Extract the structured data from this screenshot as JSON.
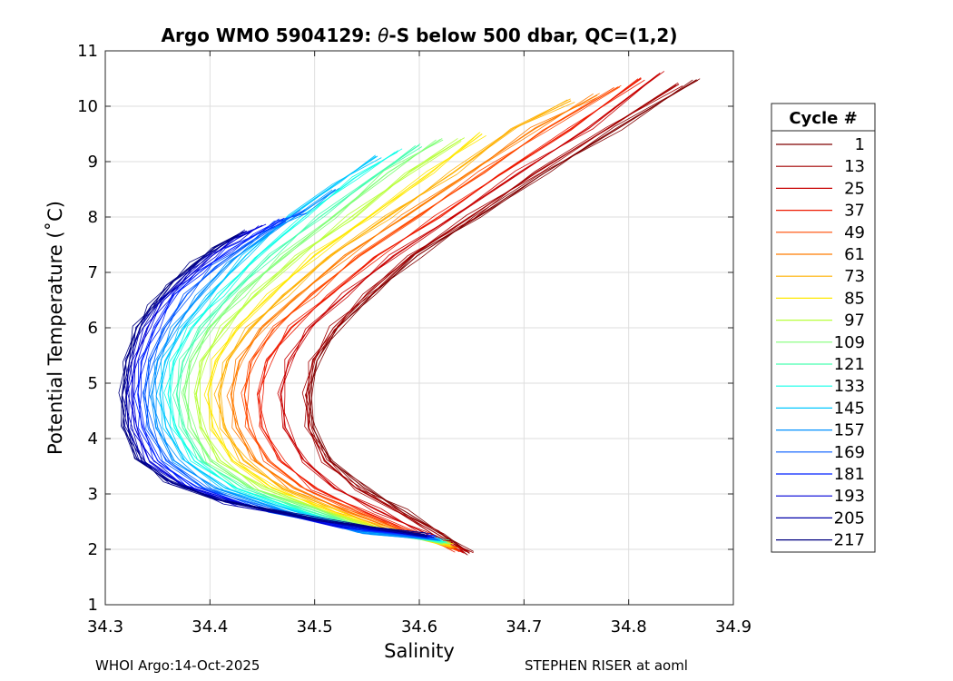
{
  "footer": {
    "left": "WHOI Argo:14-Oct-2025",
    "right": "STEPHEN RISER at aoml"
  },
  "chart_data": {
    "type": "line",
    "title_prefix": "Argo WMO 5904129: ",
    "title_symbol": "θ",
    "title_suffix": "-S below 500 dbar,  QC=(1,2)",
    "xlabel": "Salinity",
    "ylabel": "Potential Temperature (˚C)",
    "xlim": [
      34.3,
      34.9
    ],
    "ylim": [
      1,
      11
    ],
    "xticks": [
      "34.3",
      "34.4",
      "34.5",
      "34.6",
      "34.7",
      "34.8",
      "34.9"
    ],
    "yticks": [
      "1",
      "2",
      "3",
      "4",
      "5",
      "6",
      "7",
      "8",
      "9",
      "10",
      "11"
    ],
    "grid": true,
    "legend": {
      "title": "Cycle #",
      "placement": "outside-right",
      "entries": [
        {
          "label": "1",
          "color": "#800000"
        },
        {
          "label": "13",
          "color": "#a30000"
        },
        {
          "label": "25",
          "color": "#c80000"
        },
        {
          "label": "37",
          "color": "#ee1a00"
        },
        {
          "label": "49",
          "color": "#ff4a00"
        },
        {
          "label": "61",
          "color": "#ff7c00"
        },
        {
          "label": "73",
          "color": "#ffb000"
        },
        {
          "label": "85",
          "color": "#ffe800"
        },
        {
          "label": "97",
          "color": "#b8ff3c"
        },
        {
          "label": "109",
          "color": "#80ff78"
        },
        {
          "label": "121",
          "color": "#48ffb0"
        },
        {
          "label": "133",
          "color": "#10ffe8"
        },
        {
          "label": "145",
          "color": "#00c8ff"
        },
        {
          "label": "157",
          "color": "#0090ff"
        },
        {
          "label": "169",
          "color": "#0058ff"
        },
        {
          "label": "181",
          "color": "#0020ff"
        },
        {
          "label": "193",
          "color": "#0000d8"
        },
        {
          "label": "205",
          "color": "#0000a8"
        },
        {
          "label": "217",
          "color": "#000080"
        }
      ]
    },
    "series": [
      {
        "name": "1",
        "color": "#800000",
        "salinity": [
          34.648,
          34.62,
          34.585,
          34.548,
          34.515,
          34.498,
          34.495,
          34.502,
          34.522,
          34.555,
          34.598,
          34.655,
          34.72,
          34.79,
          34.865
        ],
        "theta": [
          1.93,
          2.3,
          2.7,
          3.1,
          3.6,
          4.2,
          4.8,
          5.4,
          6.0,
          6.6,
          7.3,
          8.0,
          8.8,
          9.6,
          10.48
        ]
      },
      {
        "name": "13",
        "color": "#a30000",
        "salinity": [
          34.648,
          34.615,
          34.578,
          34.54,
          34.51,
          34.494,
          34.492,
          34.498,
          34.518,
          34.55,
          34.592,
          34.648,
          34.712,
          34.78,
          34.848
        ],
        "theta": [
          1.93,
          2.3,
          2.7,
          3.1,
          3.6,
          4.2,
          4.8,
          5.4,
          6.0,
          6.6,
          7.3,
          8.0,
          8.8,
          9.6,
          10.4
        ]
      },
      {
        "name": "25",
        "color": "#c80000",
        "salinity": [
          34.642,
          34.605,
          34.56,
          34.52,
          34.49,
          34.472,
          34.468,
          34.475,
          34.495,
          34.53,
          34.575,
          34.632,
          34.695,
          34.762,
          34.83
        ],
        "theta": [
          1.95,
          2.3,
          2.7,
          3.1,
          3.6,
          4.2,
          4.8,
          5.4,
          6.0,
          6.6,
          7.3,
          8.0,
          8.8,
          9.6,
          10.6
        ]
      },
      {
        "name": "37",
        "color": "#ee1a00",
        "salinity": [
          34.638,
          34.595,
          34.545,
          34.5,
          34.468,
          34.45,
          34.447,
          34.455,
          34.478,
          34.515,
          34.56,
          34.618,
          34.68,
          34.745,
          34.812
        ],
        "theta": [
          1.98,
          2.3,
          2.7,
          3.1,
          3.6,
          4.2,
          4.8,
          5.4,
          6.0,
          6.6,
          7.3,
          8.0,
          8.8,
          9.6,
          10.5
        ]
      },
      {
        "name": "49",
        "color": "#ff4a00",
        "salinity": [
          34.635,
          34.59,
          34.538,
          34.49,
          34.455,
          34.437,
          34.433,
          34.44,
          34.462,
          34.498,
          34.542,
          34.598,
          34.66,
          34.722,
          34.79
        ],
        "theta": [
          2.0,
          2.3,
          2.7,
          3.1,
          3.6,
          4.2,
          4.8,
          5.4,
          6.0,
          6.6,
          7.3,
          8.0,
          8.8,
          9.6,
          10.35
        ]
      },
      {
        "name": "61",
        "color": "#ff7c00",
        "salinity": [
          34.633,
          34.585,
          34.53,
          34.48,
          34.443,
          34.425,
          34.42,
          34.428,
          34.45,
          34.485,
          34.53,
          34.585,
          34.648,
          34.71,
          34.77
        ],
        "theta": [
          2.02,
          2.3,
          2.7,
          3.1,
          3.6,
          4.2,
          4.8,
          5.4,
          6.0,
          6.6,
          7.3,
          8.0,
          8.8,
          9.6,
          10.2
        ]
      },
      {
        "name": "73",
        "color": "#ffb000",
        "salinity": [
          34.632,
          34.58,
          34.522,
          34.47,
          34.432,
          34.413,
          34.408,
          34.416,
          34.438,
          34.472,
          34.515,
          34.57,
          34.632,
          34.69,
          34.745
        ],
        "theta": [
          2.05,
          2.3,
          2.7,
          3.1,
          3.6,
          4.2,
          4.8,
          5.4,
          6.0,
          6.6,
          7.3,
          8.0,
          8.8,
          9.6,
          10.1
        ]
      },
      {
        "name": "85",
        "color": "#ffe800",
        "salinity": [
          34.63,
          34.575,
          34.515,
          34.46,
          34.422,
          34.403,
          34.398,
          34.405,
          34.426,
          34.458,
          34.5,
          34.552,
          34.61,
          34.66
        ],
        "theta": [
          2.07,
          2.3,
          2.7,
          3.1,
          3.6,
          4.2,
          4.8,
          5.4,
          6.0,
          6.6,
          7.3,
          8.0,
          8.8,
          9.5
        ]
      },
      {
        "name": "97",
        "color": "#b8ff3c",
        "salinity": [
          34.628,
          34.57,
          34.508,
          34.45,
          34.41,
          34.392,
          34.387,
          34.393,
          34.413,
          34.443,
          34.485,
          34.535,
          34.59,
          34.64
        ],
        "theta": [
          2.1,
          2.3,
          2.7,
          3.1,
          3.6,
          4.2,
          4.8,
          5.4,
          6.0,
          6.6,
          7.3,
          8.0,
          8.8,
          9.4
        ]
      },
      {
        "name": "109",
        "color": "#80ff78",
        "salinity": [
          34.627,
          34.565,
          34.5,
          34.44,
          34.4,
          34.382,
          34.376,
          34.382,
          34.4,
          34.43,
          34.47,
          34.518,
          34.57,
          34.62
        ],
        "theta": [
          2.12,
          2.3,
          2.7,
          3.1,
          3.6,
          4.2,
          4.8,
          5.4,
          6.0,
          6.6,
          7.3,
          8.0,
          8.8,
          9.4
        ]
      },
      {
        "name": "121",
        "color": "#48ffb0",
        "salinity": [
          34.625,
          34.56,
          34.492,
          34.432,
          34.392,
          34.374,
          34.368,
          34.374,
          34.392,
          34.42,
          34.458,
          34.505,
          34.555,
          34.6
        ],
        "theta": [
          2.14,
          2.3,
          2.7,
          3.1,
          3.6,
          4.2,
          4.8,
          5.4,
          6.0,
          6.6,
          7.3,
          8.0,
          8.7,
          9.3
        ]
      },
      {
        "name": "133",
        "color": "#10ffe8",
        "salinity": [
          34.622,
          34.555,
          34.485,
          34.425,
          34.385,
          34.366,
          34.36,
          34.365,
          34.382,
          34.41,
          34.446,
          34.49,
          34.538,
          34.58
        ],
        "theta": [
          2.16,
          2.3,
          2.7,
          3.1,
          3.6,
          4.2,
          4.8,
          5.4,
          6.0,
          6.6,
          7.3,
          8.0,
          8.7,
          9.2
        ]
      },
      {
        "name": "145",
        "color": "#00c8ff",
        "salinity": [
          34.62,
          34.55,
          34.478,
          34.415,
          34.376,
          34.358,
          34.352,
          34.357,
          34.374,
          34.4,
          34.434,
          34.475,
          34.52,
          34.56
        ],
        "theta": [
          2.17,
          2.3,
          2.7,
          3.1,
          3.6,
          4.2,
          4.8,
          5.4,
          6.0,
          6.6,
          7.3,
          8.0,
          8.6,
          9.1
        ]
      },
      {
        "name": "157",
        "color": "#0090ff",
        "salinity": [
          34.618,
          34.545,
          34.47,
          34.405,
          34.366,
          34.35,
          34.345,
          34.35,
          34.366,
          34.39,
          34.42,
          34.455,
          34.49,
          34.52
        ],
        "theta": [
          2.18,
          2.3,
          2.7,
          3.1,
          3.6,
          4.2,
          4.8,
          5.4,
          6.0,
          6.6,
          7.2,
          7.7,
          8.1,
          8.5
        ]
      },
      {
        "name": "169",
        "color": "#0058ff",
        "salinity": [
          34.615,
          34.54,
          34.46,
          34.395,
          34.358,
          34.342,
          34.338,
          34.343,
          34.357,
          34.378,
          34.405,
          34.435,
          34.465,
          34.49
        ],
        "theta": [
          2.2,
          2.35,
          2.7,
          3.1,
          3.6,
          4.2,
          4.8,
          5.4,
          6.0,
          6.6,
          7.1,
          7.5,
          7.9,
          8.1
        ]
      },
      {
        "name": "181",
        "color": "#0020ff",
        "salinity": [
          34.612,
          34.53,
          34.445,
          34.385,
          34.35,
          34.335,
          34.331,
          34.335,
          34.348,
          34.366,
          34.39,
          34.418,
          34.445,
          34.47
        ],
        "theta": [
          2.22,
          2.4,
          2.75,
          3.1,
          3.6,
          4.2,
          4.8,
          5.4,
          6.0,
          6.6,
          7.0,
          7.4,
          7.7,
          7.95
        ]
      },
      {
        "name": "193",
        "color": "#0000d8",
        "salinity": [
          34.61,
          34.52,
          34.43,
          34.375,
          34.342,
          34.328,
          34.325,
          34.328,
          34.34,
          34.356,
          34.378,
          34.402,
          34.425,
          34.45
        ],
        "theta": [
          2.24,
          2.45,
          2.8,
          3.15,
          3.6,
          4.2,
          4.8,
          5.4,
          6.0,
          6.5,
          6.9,
          7.3,
          7.6,
          7.85
        ]
      },
      {
        "name": "205",
        "color": "#0000a8",
        "salinity": [
          34.608,
          34.51,
          34.415,
          34.365,
          34.335,
          34.322,
          34.32,
          34.323,
          34.333,
          34.348,
          34.368,
          34.39,
          34.412,
          34.435
        ],
        "theta": [
          2.25,
          2.5,
          2.85,
          3.2,
          3.6,
          4.2,
          4.8,
          5.4,
          6.0,
          6.4,
          6.8,
          7.2,
          7.5,
          7.75
        ]
      },
      {
        "name": "217",
        "color": "#000080",
        "salinity": [
          34.605,
          34.5,
          34.405,
          34.358,
          34.33,
          34.318,
          34.316,
          34.32,
          34.33,
          34.344,
          34.362,
          34.384,
          34.405,
          34.428
        ],
        "theta": [
          2.27,
          2.55,
          2.9,
          3.25,
          3.65,
          4.2,
          4.8,
          5.4,
          6.0,
          6.4,
          6.8,
          7.15,
          7.45,
          7.7
        ]
      }
    ]
  }
}
